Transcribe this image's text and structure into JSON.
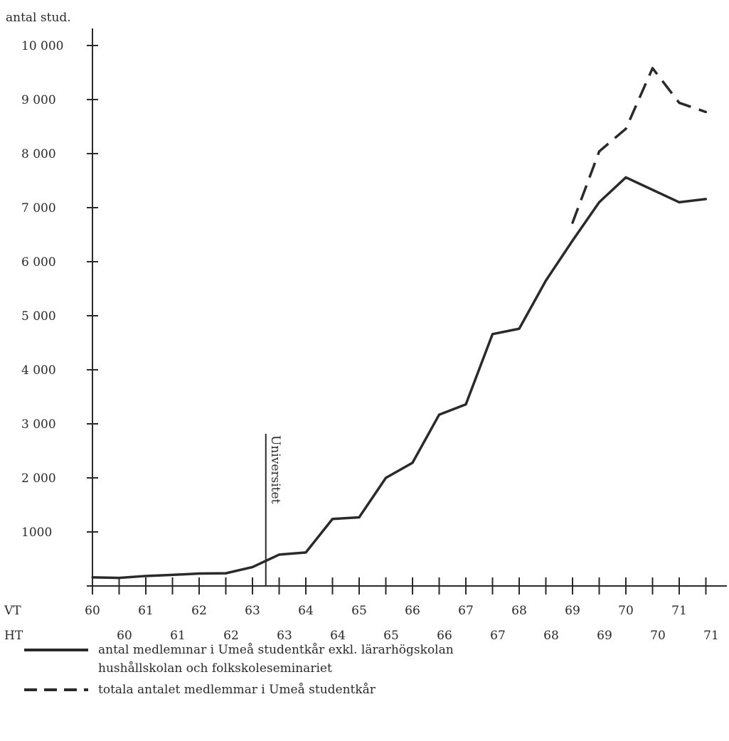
{
  "chart_data": {
    "type": "line",
    "ylabel": "antal stud.",
    "ylim": [
      0,
      10000
    ],
    "yticks": [
      {
        "value": 1000,
        "label": "1000"
      },
      {
        "value": 2000,
        "label": "2 000"
      },
      {
        "value": 3000,
        "label": "3 000"
      },
      {
        "value": 4000,
        "label": "4 000"
      },
      {
        "value": 5000,
        "label": "5 000"
      },
      {
        "value": 6000,
        "label": "6 000"
      },
      {
        "value": 7000,
        "label": "7 000"
      },
      {
        "value": 8000,
        "label": "8 000"
      },
      {
        "value": 9000,
        "label": "9 000"
      },
      {
        "value": 10000,
        "label": "10 000"
      }
    ],
    "x_row_labels": {
      "vt": "VT",
      "ht": "HT"
    },
    "periods": [
      "VT 60",
      "HT 60",
      "VT 61",
      "HT 61",
      "VT 62",
      "HT 62",
      "VT 63",
      "HT 63",
      "VT 64",
      "HT 64",
      "VT 65",
      "HT 65",
      "VT 66",
      "HT 66",
      "VT 67",
      "HT 67",
      "VT 68",
      "HT 68",
      "VT 69",
      "HT 69",
      "VT 70",
      "HT 70",
      "VT 71",
      "HT 71"
    ],
    "vt_labels": [
      "60",
      "61",
      "62",
      "63",
      "64",
      "65",
      "66",
      "67",
      "68",
      "69",
      "70",
      "71"
    ],
    "ht_labels": [
      "60",
      "61",
      "62",
      "63",
      "64",
      "65",
      "66",
      "67",
      "68",
      "69",
      "70",
      "71"
    ],
    "annotation": {
      "text": "Universitet",
      "x_period_index": 6.5
    },
    "series": [
      {
        "name": "antal medlemınar i Umeå studentkår exkl. lärarhögskolan hushållskolan och folkskoleseminariet",
        "style": "solid",
        "points": [
          {
            "period": 0,
            "value": 160
          },
          {
            "period": 1,
            "value": 150
          },
          {
            "period": 2,
            "value": 185
          },
          {
            "period": 3,
            "value": 205
          },
          {
            "period": 4,
            "value": 230
          },
          {
            "period": 5,
            "value": 235
          },
          {
            "period": 6,
            "value": 350
          },
          {
            "period": 7,
            "value": 580
          },
          {
            "period": 8,
            "value": 620
          },
          {
            "period": 9,
            "value": 1240
          },
          {
            "period": 10,
            "value": 1270
          },
          {
            "period": 11,
            "value": 2000
          },
          {
            "period": 12,
            "value": 2280
          },
          {
            "period": 13,
            "value": 3170
          },
          {
            "period": 14,
            "value": 3360
          },
          {
            "period": 15,
            "value": 4660
          },
          {
            "period": 16,
            "value": 4760
          },
          {
            "period": 17,
            "value": 5650
          },
          {
            "period": 18,
            "value": 6390
          },
          {
            "period": 19,
            "value": 7100
          },
          {
            "period": 20,
            "value": 7560
          },
          {
            "period": 22,
            "value": 7100
          },
          {
            "period": 23,
            "value": 7160
          }
        ]
      },
      {
        "name": "totala antalet medlemmar i Umeå studentkår",
        "style": "dashed",
        "points": [
          {
            "period": 18,
            "value": 6720
          },
          {
            "period": 19,
            "value": 8040
          },
          {
            "period": 20,
            "value": 8460
          },
          {
            "period": 21,
            "value": 9580
          },
          {
            "period": 22,
            "value": 8940
          },
          {
            "period": 23,
            "value": 8770
          }
        ]
      }
    ]
  },
  "legend": {
    "solid_line1": "antal medlemınar i Umeå studentkår exkl. lärarhögskolan",
    "solid_line2": "hushållskolan och folkskoleseminariet",
    "dashed_line1": "totala antalet medlemmar i Umeå studentkår"
  }
}
